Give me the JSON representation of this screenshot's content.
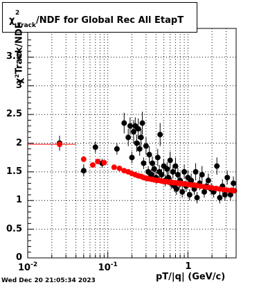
{
  "title": {
    "chi": "χ",
    "sup": "2",
    "sub": "Track",
    "rest": "/NDF for Global Rec All EtapT"
  },
  "x_axis_label": "pT/|q| (GeV/c)",
  "y_axis_label": "χ²Track/NDF",
  "timestamp": "Wed Dec 20 21:05:34 2023",
  "colors": {
    "black_series": "#000000",
    "red_series": "#ff0000",
    "grid": "#000000"
  },
  "chart_data": {
    "type": "scatter",
    "xscale": "log",
    "xlim": [
      0.01,
      4
    ],
    "ylim": [
      0,
      4
    ],
    "grid": true,
    "x_ticks": [
      {
        "value": 0.01,
        "label": "10",
        "exp": "-2"
      },
      {
        "value": 0.1,
        "label": "10",
        "exp": "-1"
      },
      {
        "value": 1,
        "label": "1",
        "exp": ""
      }
    ],
    "y_ticks": [
      {
        "value": 0,
        "label": "0"
      },
      {
        "value": 0.5,
        "label": "0.5"
      },
      {
        "value": 1,
        "label": "1"
      },
      {
        "value": 1.5,
        "label": "1.5"
      },
      {
        "value": 2,
        "label": "2"
      },
      {
        "value": 2.5,
        "label": "2.5"
      },
      {
        "value": 3,
        "label": "3"
      },
      {
        "value": 3.5,
        "label": "3.5"
      }
    ],
    "series": [
      {
        "color": "#000000",
        "points": [
          [
            0.025,
            2.0,
            0.13
          ],
          [
            0.05,
            1.52,
            0.1
          ],
          [
            0.07,
            1.93,
            0.1
          ],
          [
            0.085,
            1.65,
            0.08
          ],
          [
            0.13,
            1.9,
            0.1
          ],
          [
            0.16,
            2.35,
            0.18
          ],
          [
            0.18,
            2.1,
            0.15
          ],
          [
            0.19,
            2.3,
            0.15
          ],
          [
            0.2,
            1.75,
            0.1
          ],
          [
            0.21,
            2.2,
            0.2
          ],
          [
            0.22,
            2.3,
            0.15
          ],
          [
            0.23,
            2.0,
            0.15
          ],
          [
            0.24,
            2.25,
            0.18
          ],
          [
            0.25,
            1.9,
            0.12
          ],
          [
            0.26,
            2.1,
            0.15
          ],
          [
            0.27,
            2.35,
            0.2
          ],
          [
            0.28,
            1.65,
            0.1
          ],
          [
            0.3,
            1.95,
            0.15
          ],
          [
            0.32,
            1.5,
            0.1
          ],
          [
            0.33,
            1.8,
            0.15
          ],
          [
            0.35,
            1.45,
            0.1
          ],
          [
            0.36,
            1.65,
            0.12
          ],
          [
            0.38,
            1.55,
            0.1
          ],
          [
            0.4,
            1.4,
            0.1
          ],
          [
            0.42,
            1.75,
            0.15
          ],
          [
            0.44,
            1.5,
            0.12
          ],
          [
            0.45,
            2.15,
            0.2
          ],
          [
            0.47,
            1.45,
            0.1
          ],
          [
            0.5,
            1.6,
            0.12
          ],
          [
            0.52,
            1.35,
            0.1
          ],
          [
            0.55,
            1.55,
            0.12
          ],
          [
            0.57,
            1.4,
            0.1
          ],
          [
            0.6,
            1.7,
            0.15
          ],
          [
            0.62,
            1.3,
            0.1
          ],
          [
            0.65,
            1.5,
            0.12
          ],
          [
            0.68,
            1.25,
            0.1
          ],
          [
            0.7,
            1.6,
            0.15
          ],
          [
            0.72,
            1.2,
            0.1
          ],
          [
            0.75,
            1.45,
            0.12
          ],
          [
            0.78,
            1.3,
            0.1
          ],
          [
            0.8,
            1.35,
            0.12
          ],
          [
            0.85,
            1.15,
            0.1
          ],
          [
            0.9,
            1.5,
            0.12
          ],
          [
            0.95,
            1.25,
            0.1
          ],
          [
            1.0,
            1.4,
            0.12
          ],
          [
            1.05,
            1.1,
            0.1
          ],
          [
            1.1,
            1.35,
            0.12
          ],
          [
            1.2,
            1.2,
            0.1
          ],
          [
            1.25,
            1.5,
            0.15
          ],
          [
            1.3,
            1.05,
            0.1
          ],
          [
            1.4,
            1.3,
            0.12
          ],
          [
            1.5,
            1.45,
            0.15
          ],
          [
            1.6,
            1.15,
            0.1
          ],
          [
            1.7,
            1.25,
            0.12
          ],
          [
            1.8,
            1.35,
            0.12
          ],
          [
            1.95,
            1.2,
            0.1
          ],
          [
            2.1,
            1.15,
            0.1
          ],
          [
            2.3,
            1.6,
            0.15
          ],
          [
            2.5,
            1.05,
            0.1
          ],
          [
            2.7,
            1.25,
            0.12
          ],
          [
            2.9,
            1.1,
            0.1
          ],
          [
            3.1,
            1.4,
            0.12
          ],
          [
            3.4,
            1.1,
            0.1
          ],
          [
            3.7,
            1.3,
            0.12
          ]
        ]
      },
      {
        "color": "#ff0000",
        "points": [
          [
            0.025,
            1.98,
            0.02
          ],
          [
            0.05,
            1.72,
            0.03
          ],
          [
            0.065,
            1.62,
            0.03
          ],
          [
            0.075,
            1.68,
            0.03
          ],
          [
            0.09,
            1.66,
            0.03
          ],
          [
            0.12,
            1.58,
            0.02
          ],
          [
            0.14,
            1.56,
            0.02
          ],
          [
            0.16,
            1.52,
            0.02
          ],
          [
            0.18,
            1.5,
            0.02
          ],
          [
            0.2,
            1.47,
            0.02
          ],
          [
            0.22,
            1.45,
            0.02
          ],
          [
            0.24,
            1.43,
            0.02
          ],
          [
            0.26,
            1.42,
            0.02
          ],
          [
            0.28,
            1.4,
            0.02
          ],
          [
            0.3,
            1.39,
            0.02
          ],
          [
            0.32,
            1.38,
            0.02
          ],
          [
            0.35,
            1.37,
            0.02
          ],
          [
            0.38,
            1.36,
            0.02
          ],
          [
            0.41,
            1.35,
            0.02
          ],
          [
            0.44,
            1.35,
            0.02
          ],
          [
            0.47,
            1.34,
            0.02
          ],
          [
            0.5,
            1.33,
            0.02
          ],
          [
            0.54,
            1.33,
            0.02
          ],
          [
            0.58,
            1.32,
            0.02
          ],
          [
            0.62,
            1.32,
            0.02
          ],
          [
            0.66,
            1.31,
            0.02
          ],
          [
            0.7,
            1.31,
            0.02
          ],
          [
            0.75,
            1.3,
            0.02
          ],
          [
            0.8,
            1.3,
            0.02
          ],
          [
            0.86,
            1.29,
            0.02
          ],
          [
            0.92,
            1.29,
            0.02
          ],
          [
            1.0,
            1.28,
            0.02
          ],
          [
            1.1,
            1.27,
            0.02
          ],
          [
            1.2,
            1.27,
            0.02
          ],
          [
            1.3,
            1.26,
            0.02
          ],
          [
            1.45,
            1.25,
            0.02
          ],
          [
            1.6,
            1.24,
            0.02
          ],
          [
            1.8,
            1.23,
            0.02
          ],
          [
            2.0,
            1.22,
            0.02
          ],
          [
            2.25,
            1.21,
            0.02
          ],
          [
            2.5,
            1.2,
            0.02
          ],
          [
            2.8,
            1.19,
            0.02
          ],
          [
            3.1,
            1.18,
            0.02
          ],
          [
            3.5,
            1.18,
            0.02
          ],
          [
            3.8,
            1.17,
            0.02
          ]
        ]
      }
    ],
    "reference_line": {
      "y": 1.98,
      "x_from": 0.01,
      "x_to": 0.04,
      "color": "#ff0000"
    }
  }
}
